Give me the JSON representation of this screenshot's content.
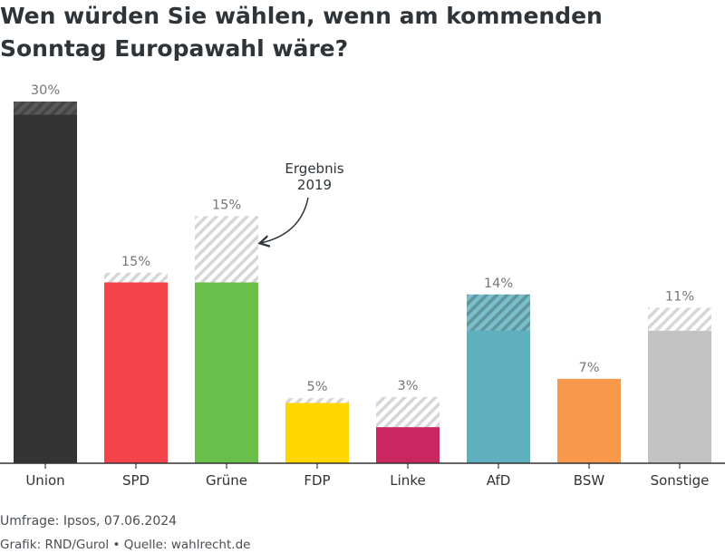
{
  "title": "Wen würden Sie wählen, wenn am kommenden Sonntag Europawahl wäre?",
  "footer": {
    "survey": "Umfrage: Ipsos, 07.06.2024",
    "source": "Grafik: RND/Gurol • Quelle: wahlrecht.de"
  },
  "chart_data": {
    "type": "bar",
    "title": "Wen würden Sie wählen, wenn am kommenden Sonntag Europawahl wäre?",
    "xlabel": "",
    "ylabel": "",
    "ylim": [
      0,
      30
    ],
    "grid": false,
    "categories": [
      "Union",
      "SPD",
      "Grüne",
      "FDP",
      "Linke",
      "AfD",
      "BSW",
      "Sonstige"
    ],
    "series": [
      {
        "values": [
          30,
          15,
          15,
          5,
          3,
          14,
          7,
          11
        ]
      },
      {
        "name": "Ergebnis 2019",
        "values": [
          28.9,
          15.8,
          20.5,
          5.4,
          5.5,
          11,
          null,
          12.9
        ]
      }
    ],
    "value_labels": [
      "30%",
      "15%",
      "15%",
      "5%",
      "3%",
      "14%",
      "7%",
      "11%"
    ],
    "annotation": "Ergebnis\n2019",
    "colors": [
      "#333333",
      "#f4444a",
      "#6abf4b",
      "#ffd600",
      "#c8275f",
      "#5eb0bf",
      "#f7984a",
      "#c3c3c3"
    ],
    "hatch_color": "#cccccc",
    "value_label_color": "#777777"
  }
}
